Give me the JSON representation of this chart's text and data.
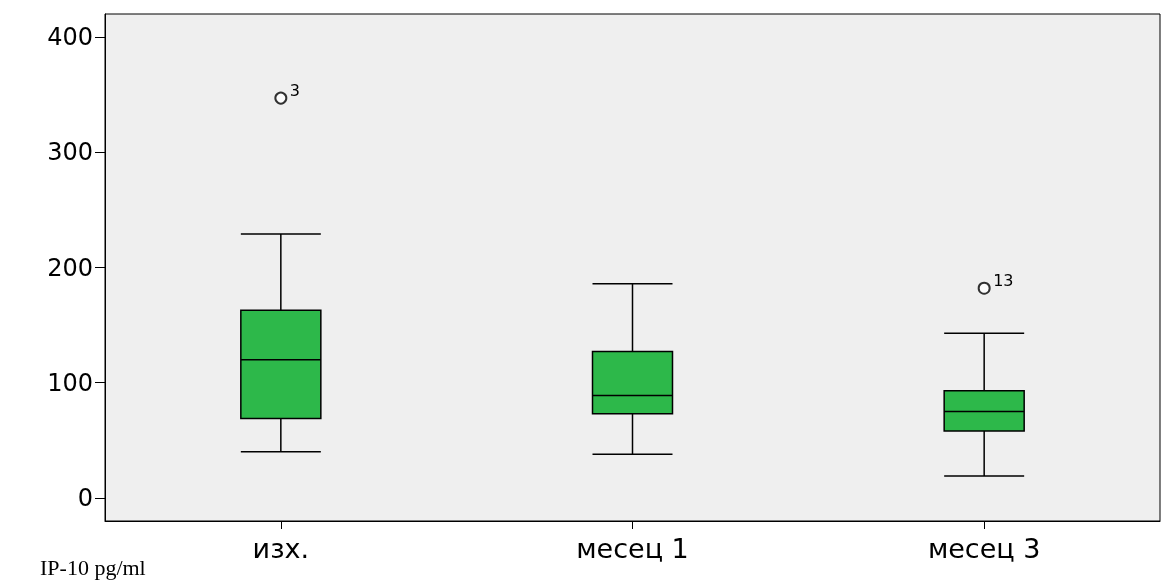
{
  "chart_data": {
    "type": "box",
    "ylabel": "IP-10 pg/ml",
    "categories": [
      "изх.",
      "месец 1",
      "месец 3"
    ],
    "color": "#2db84a",
    "boxes": [
      {
        "low": 40,
        "q1": 69,
        "median": 120,
        "q3": 163,
        "high": 229,
        "outliers": [
          347
        ]
      },
      {
        "low": 38,
        "q1": 73,
        "median": 89,
        "q3": 127,
        "high": 186
      },
      {
        "low": 19,
        "q1": 58,
        "median": 75,
        "q3": 93,
        "high": 143,
        "outliers": [
          182
        ]
      }
    ],
    "ylim": [
      -20,
      420
    ],
    "yticks": [
      0,
      100,
      200,
      300,
      400
    ],
    "annotations": [
      "3",
      "13"
    ]
  }
}
